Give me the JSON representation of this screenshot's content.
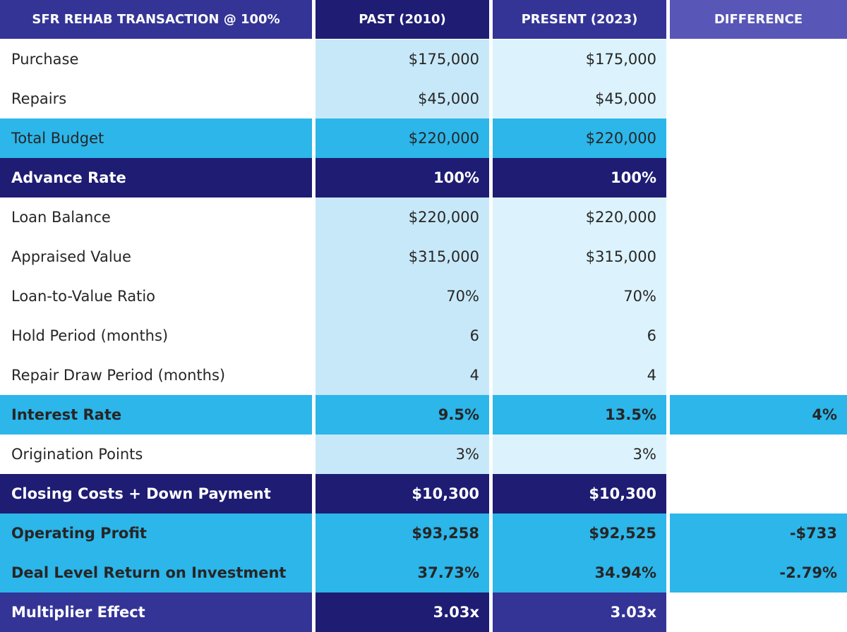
{
  "table": {
    "headers": [
      "SFR REHAB TRANSACTION @ 100%",
      "PAST (2010)",
      "PRESENT (2023)",
      "DIFFERENCE"
    ],
    "rows": [
      {
        "label": "Purchase",
        "past": "$175,000",
        "present": "$175,000",
        "diff": ""
      },
      {
        "label": "Repairs",
        "past": "$45,000",
        "present": "$45,000",
        "diff": ""
      },
      {
        "label": "Total Budget",
        "past": "$220,000",
        "present": "$220,000",
        "diff": ""
      },
      {
        "label": "Advance Rate",
        "past": "100%",
        "present": "100%",
        "diff": ""
      },
      {
        "label": "Loan Balance",
        "past": "$220,000",
        "present": "$220,000",
        "diff": ""
      },
      {
        "label": "Appraised Value",
        "past": "$315,000",
        "present": "$315,000",
        "diff": ""
      },
      {
        "label": "Loan-to-Value Ratio",
        "past": "70%",
        "present": "70%",
        "diff": ""
      },
      {
        "label": "Hold Period (months)",
        "past": "6",
        "present": "6",
        "diff": ""
      },
      {
        "label": "Repair Draw Period (months)",
        "past": "4",
        "present": "4",
        "diff": ""
      },
      {
        "label": "Interest Rate",
        "past": "9.5%",
        "present": "13.5%",
        "diff": "4%"
      },
      {
        "label": "Origination Points",
        "past": "3%",
        "present": "3%",
        "diff": ""
      },
      {
        "label": "Closing Costs + Down Payment",
        "past": "$10,300",
        "present": "$10,300",
        "diff": ""
      },
      {
        "label": "Operating Profit",
        "past": "$93,258",
        "present": "$92,525",
        "diff": "-$733"
      },
      {
        "label": "Deal Level Return on Investment",
        "past": "37.73%",
        "present": "34.94%",
        "diff": "-2.79%"
      },
      {
        "label": "Multiplier Effect",
        "past": "3.03x",
        "present": "3.03x",
        "diff": ""
      }
    ]
  },
  "colors": {
    "navy": "#1e1c73",
    "purple": "#343497",
    "lavender": "#5856b7",
    "cyan": "#2cb6ea",
    "pale_blue_past": "#c7e8f8",
    "pale_blue_present": "#dcf3fd"
  }
}
